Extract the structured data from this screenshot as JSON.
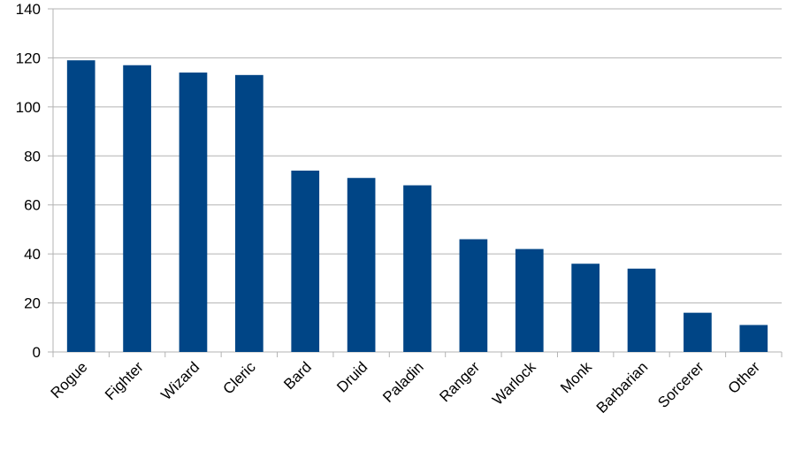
{
  "chart_data": {
    "type": "bar",
    "categories": [
      "Rogue",
      "Fighter",
      "Wizard",
      "Cleric",
      "Bard",
      "Druid",
      "Paladin",
      "Ranger",
      "Warlock",
      "Monk",
      "Barbarian",
      "Sorcerer",
      "Other"
    ],
    "values": [
      119,
      117,
      114,
      113,
      74,
      71,
      68,
      46,
      42,
      36,
      34,
      16,
      11
    ],
    "color": "#004586",
    "ylim": [
      0,
      140
    ],
    "yticks": [
      0,
      20,
      40,
      60,
      80,
      100,
      120,
      140
    ],
    "grid": true
  }
}
